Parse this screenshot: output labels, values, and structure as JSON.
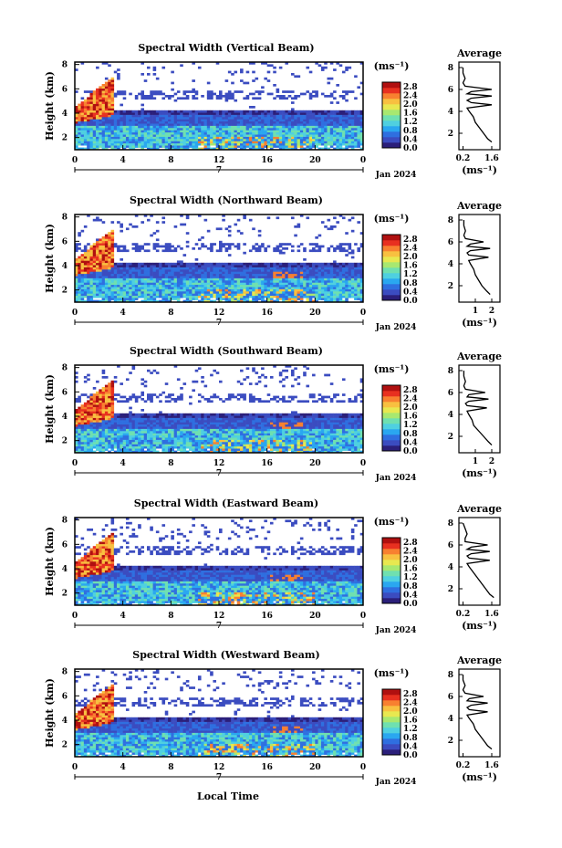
{
  "colors": {
    "colormap": [
      "#2b1f7a",
      "#3b4cc0",
      "#2f6fe0",
      "#2aa7f0",
      "#4fd0e0",
      "#6fe0b0",
      "#a8e870",
      "#e8e850",
      "#f8c040",
      "#f88030",
      "#e83020",
      "#b01010"
    ],
    "background": "#ffffff"
  },
  "shared": {
    "x_ticks": [
      "0",
      "4",
      "8",
      "12",
      "16",
      "20",
      "0"
    ],
    "day_label": "7",
    "month_label": "Jan 2024",
    "xlabel": "Local Time",
    "ylabel": "Height (km)",
    "y_ticks": [
      "2",
      "4",
      "6",
      "8"
    ],
    "colorbar_unit": "(ms⁻¹)",
    "colorbar_ticks": [
      "2.8",
      "2.4",
      "2.0",
      "1.6",
      "1.2",
      "0.8",
      "0.4",
      "0.0"
    ],
    "profile_title": "Average",
    "profile_xlabel": "(ms⁻¹)",
    "profile_y_ticks": [
      "2",
      "4",
      "6",
      "8"
    ]
  },
  "chart_data": [
    {
      "type": "heatmap",
      "title": "Spectral Width (Vertical Beam)",
      "xlim": [
        0,
        24
      ],
      "ylim": [
        1,
        8.2
      ],
      "colorbar_range": [
        0,
        2.8
      ],
      "profile": {
        "title": "Average",
        "xticks": [
          "0.2",
          "1.6"
        ],
        "xlim": [
          0,
          2
        ],
        "height": [
          1.2,
          1.5,
          2,
          2.5,
          3,
          3.5,
          4,
          4.3,
          4.6,
          4.8,
          5,
          5.2,
          5.4,
          5.6,
          5.8,
          6,
          6.3,
          6.6,
          7,
          7.5,
          8
        ],
        "width": [
          1.6,
          1.4,
          1.2,
          1.0,
          0.8,
          0.7,
          0.5,
          0.4,
          1.6,
          0.6,
          0.4,
          0.6,
          1.6,
          0.4,
          0.6,
          1.6,
          0.3,
          0.2,
          0.3,
          0.2,
          0.2
        ]
      }
    },
    {
      "type": "heatmap",
      "title": "Spectral Width (Northward Beam)",
      "xlim": [
        0,
        24
      ],
      "ylim": [
        1,
        8.2
      ],
      "colorbar_range": [
        0,
        2.8
      ],
      "profile": {
        "title": "Average",
        "xticks": [
          "1",
          "2"
        ],
        "xlim": [
          0,
          2.5
        ],
        "height": [
          1.2,
          1.5,
          2,
          2.5,
          3,
          3.5,
          4,
          4.3,
          4.6,
          4.8,
          5,
          5.2,
          5.4,
          5.6,
          5.8,
          6,
          6.3,
          6.6,
          7,
          7.5,
          8
        ],
        "width": [
          1.9,
          1.7,
          1.4,
          1.2,
          1.0,
          0.9,
          0.7,
          0.6,
          1.8,
          0.6,
          0.5,
          0.7,
          1.9,
          0.5,
          0.7,
          1.5,
          0.4,
          0.3,
          0.4,
          0.3,
          0.3
        ]
      }
    },
    {
      "type": "heatmap",
      "title": "Spectral Width (Southward Beam)",
      "xlim": [
        0,
        24
      ],
      "ylim": [
        1,
        8.2
      ],
      "colorbar_range": [
        0,
        2.8
      ],
      "profile": {
        "title": "Average",
        "xticks": [
          "1",
          "2"
        ],
        "xlim": [
          0,
          2.5
        ],
        "height": [
          1.2,
          1.5,
          2,
          2.5,
          3,
          3.5,
          4,
          4.3,
          4.6,
          4.8,
          5,
          5.2,
          5.4,
          5.6,
          5.8,
          6,
          6.3,
          6.6,
          7,
          7.5,
          8
        ],
        "width": [
          2.0,
          1.8,
          1.5,
          1.2,
          0.9,
          0.8,
          0.6,
          0.5,
          1.7,
          0.5,
          0.4,
          0.6,
          1.8,
          0.5,
          0.6,
          1.6,
          0.4,
          0.3,
          0.4,
          0.3,
          0.3
        ]
      }
    },
    {
      "type": "heatmap",
      "title": "Spectral Width (Eastward Beam)",
      "xlim": [
        0,
        24
      ],
      "ylim": [
        1,
        8.2
      ],
      "colorbar_range": [
        0,
        2.8
      ],
      "profile": {
        "title": "Average",
        "xticks": [
          "0.2",
          "1.6"
        ],
        "xlim": [
          0,
          2
        ],
        "height": [
          1.2,
          1.5,
          2,
          2.5,
          3,
          3.5,
          4,
          4.3,
          4.6,
          4.8,
          5,
          5.2,
          5.4,
          5.6,
          5.8,
          6,
          6.3,
          6.6,
          7,
          7.5,
          8
        ],
        "width": [
          1.7,
          1.5,
          1.3,
          1.1,
          0.9,
          0.7,
          0.5,
          0.4,
          1.5,
          0.5,
          0.4,
          0.6,
          1.5,
          0.4,
          0.6,
          1.4,
          0.3,
          0.3,
          0.4,
          0.3,
          0.2
        ]
      }
    },
    {
      "type": "heatmap",
      "title": "Spectral Width (Westward Beam)",
      "xlim": [
        0,
        24
      ],
      "ylim": [
        1,
        8.2
      ],
      "colorbar_range": [
        0,
        2.8
      ],
      "profile": {
        "title": "Average",
        "xticks": [
          "0.2",
          "1.6"
        ],
        "xlim": [
          0,
          2
        ],
        "height": [
          1.2,
          1.5,
          2,
          2.5,
          3,
          3.5,
          4,
          4.3,
          4.6,
          4.8,
          5,
          5.2,
          5.4,
          5.6,
          5.8,
          6,
          6.3,
          6.6,
          7,
          7.5,
          8
        ],
        "width": [
          1.6,
          1.4,
          1.2,
          1.0,
          0.8,
          0.7,
          0.5,
          0.4,
          1.4,
          0.5,
          0.4,
          0.6,
          1.4,
          0.4,
          0.5,
          1.2,
          0.3,
          0.2,
          0.3,
          0.2,
          0.2
        ]
      }
    }
  ]
}
